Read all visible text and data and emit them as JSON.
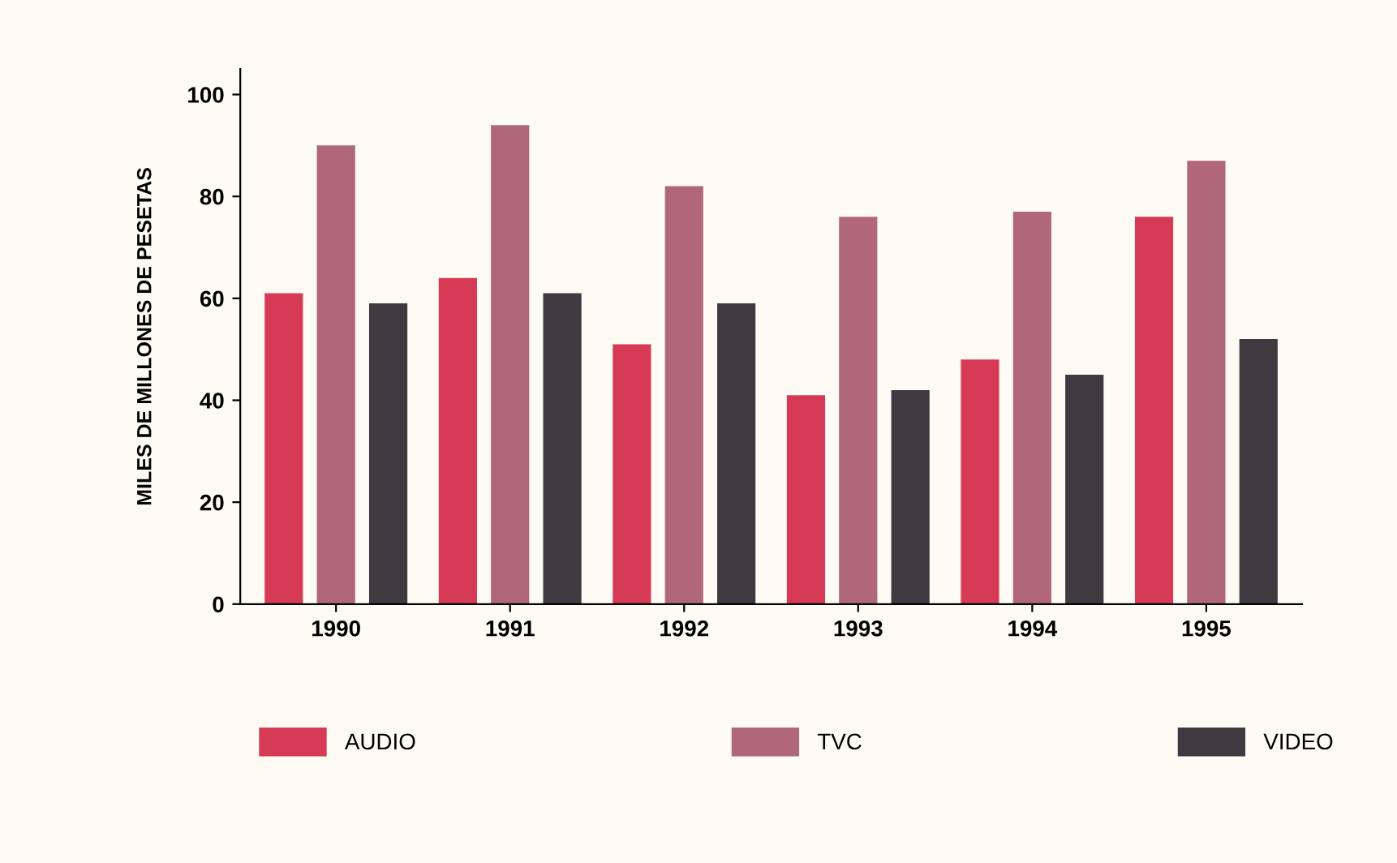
{
  "chart_data": {
    "type": "bar",
    "ylabel": "MILES DE MILLONES DE PESETAS",
    "categories": [
      "1990",
      "1991",
      "1992",
      "1993",
      "1994",
      "1995"
    ],
    "series": [
      {
        "name": "AUDIO",
        "color": "#d63a55",
        "values": [
          61,
          64,
          51,
          41,
          48,
          76
        ]
      },
      {
        "name": "TVC",
        "color": "#b06878",
        "values": [
          90,
          94,
          82,
          76,
          77,
          87
        ]
      },
      {
        "name": "VIDEO",
        "color": "#3e3a40",
        "values": [
          59,
          61,
          59,
          42,
          45,
          52
        ]
      }
    ],
    "ylim": [
      0,
      105
    ],
    "yticks": [
      0,
      20,
      40,
      60,
      80,
      100
    ],
    "grid": false,
    "legend": "bottom"
  }
}
